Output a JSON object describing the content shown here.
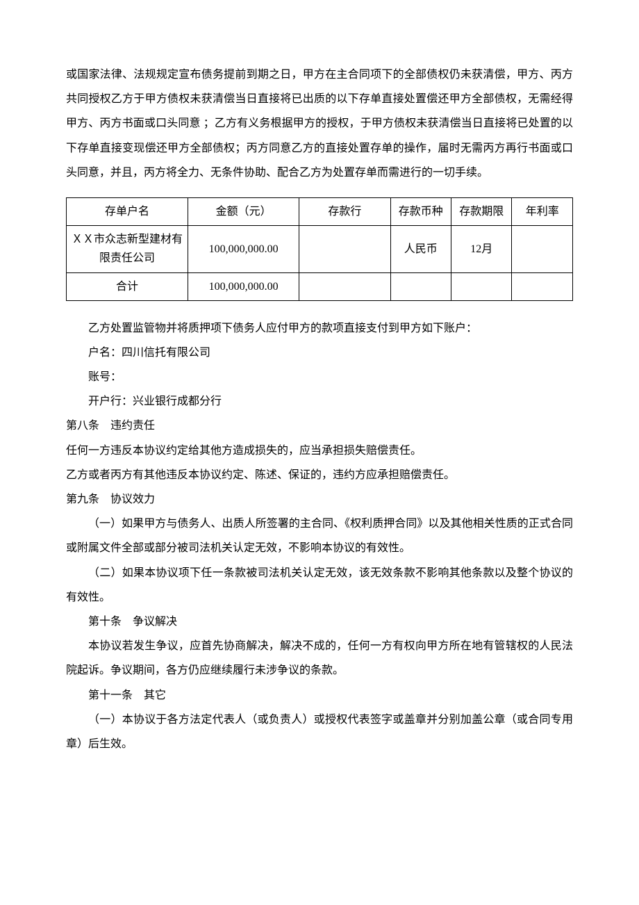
{
  "intro_paragraph": "或国家法律、法规规定宣布债务提前到期之日，甲方在主合同项下的全部债权仍未获清偿，甲方、丙方共同授权乙方于甲方债权未获清偿当日直接将已出质的以下存单直接处置偿还甲方全部债权，无需经得甲方、丙方书面或口头同意 ；乙方有义务根据甲方的授权，于甲方债权未获清偿当日直接将已处置的以下存单直接变现偿还甲方全部债权；丙方同意乙方的直接处置存单的操作，届时无需丙方再行书面或口头同意，并且，丙方将全力、无条件协助、配合乙方为处置存单而需进行的一切手续。",
  "table": {
    "headers": {
      "name": "存单户名",
      "amount": "金额（元）",
      "bank": "存款行",
      "currency": "存款币种",
      "term": "存款期限",
      "rate": "年利率"
    },
    "row1": {
      "name": "ＸＸ市众志新型建材有限责任公司",
      "amount": "100,000,000.00",
      "bank": "",
      "currency": "人民币",
      "term": "12月",
      "rate": ""
    },
    "row2": {
      "name": "合计",
      "amount": "100,000,000.00",
      "bank": "",
      "currency": "",
      "term": "",
      "rate": ""
    }
  },
  "body": {
    "p1": "乙方处置监管物并将质押项下债务人应付甲方的款项直接支付到甲方如下账户：",
    "p2": "户名：四川信托有限公司",
    "p3": "账号：",
    "p4": "开户行：兴业银行成都分行",
    "a8_title": "第八条　违约责任",
    "a8_1": "任何一方违反本协议约定给其他方造成损失的，应当承担损失赔偿责任。",
    "a8_2": "乙方或者丙方有其他违反本协议约定、陈述、保证的，违约方应承担赔偿责任。",
    "a9_title": "第九条　协议效力",
    "a9_1": "（一）如果甲方与债务人、出质人所签署的主合同、《权利质押合同》以及其他相关性质的正式合同或附属文件全部或部分被司法机关认定无效，不影响本协议的有效性。",
    "a9_2": "（二）如果本协议项下任一条款被司法机关认定无效，该无效条款不影响其他条款以及整个协议的有效性。",
    "a10_title": "第十条　争议解决",
    "a10_1": "本协议若发生争议，应首先协商解决，解决不成的，任何一方有权向甲方所在地有管辖权的人民法院起诉。争议期间，各方仍应继续履行未涉争议的条款。",
    "a11_title": "第十一条　其它",
    "a11_1": "（一）本协议于各方法定代表人（或负责人）或授权代表签字或盖章并分别加盖公章（或合同专用章）后生效。"
  }
}
